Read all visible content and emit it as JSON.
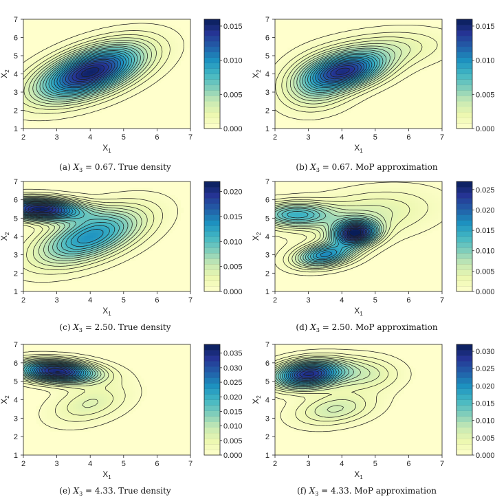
{
  "chart_data": [
    {
      "type": "heatmap",
      "panel": "a",
      "caption": "(a) X3 = 0.67. True density",
      "caption_parts": {
        "label": "(a)",
        "var": "X",
        "sub": "3",
        "rest": " = 0.67. True density"
      },
      "xlabel": "X1",
      "ylabel": "X2",
      "xlim": [
        2,
        7
      ],
      "ylim": [
        1,
        7
      ],
      "x_ticks": [
        "2",
        "3",
        "4",
        "5",
        "6",
        "7"
      ],
      "y_ticks": [
        "1",
        "2",
        "3",
        "4",
        "5",
        "6",
        "7"
      ],
      "colorbar": {
        "min": 0.0,
        "max": 0.016,
        "ticks": [
          "0.000",
          "0.005",
          "0.010",
          "0.015"
        ],
        "tick_values": [
          0.0,
          0.005,
          0.01,
          0.015
        ]
      },
      "modes": [
        {
          "center": [
            4.0,
            4.1
          ],
          "sd": [
            1.05,
            1.0
          ],
          "rho": 0.55,
          "peak": 0.0155
        }
      ]
    },
    {
      "type": "heatmap",
      "panel": "b",
      "caption": "(b) X3 = 0.67. MoP approximation",
      "caption_parts": {
        "label": "(b)",
        "var": "X",
        "sub": "3",
        "rest": " = 0.67. MoP approximation"
      },
      "xlabel": "X1",
      "ylabel": "X2",
      "xlim": [
        2,
        7
      ],
      "ylim": [
        1,
        7
      ],
      "x_ticks": [
        "2",
        "3",
        "4",
        "5",
        "6",
        "7"
      ],
      "y_ticks": [
        "1",
        "2",
        "3",
        "4",
        "5",
        "6",
        "7"
      ],
      "colorbar": {
        "min": 0.0,
        "max": 0.016,
        "ticks": [
          "0.000",
          "0.005",
          "0.010",
          "0.015"
        ],
        "tick_values": [
          0.0,
          0.005,
          0.01,
          0.015
        ]
      },
      "modes": [
        {
          "center": [
            4.2,
            4.2
          ],
          "sd": [
            0.75,
            0.65
          ],
          "rho": 0.3,
          "peak": 0.0115
        },
        {
          "center": [
            3.3,
            3.5
          ],
          "sd": [
            0.7,
            0.9
          ],
          "rho": 0.2,
          "peak": 0.0055
        },
        {
          "center": [
            5.2,
            5.3
          ],
          "sd": [
            1.2,
            0.7
          ],
          "rho": 0.3,
          "peak": 0.003
        }
      ]
    },
    {
      "type": "heatmap",
      "panel": "c",
      "caption": "(c) X3 = 2.50. True density",
      "caption_parts": {
        "label": "(c)",
        "var": "X",
        "sub": "3",
        "rest": " = 2.50. True density"
      },
      "xlabel": "X1",
      "ylabel": "X2",
      "xlim": [
        2,
        7
      ],
      "ylim": [
        1,
        7
      ],
      "x_ticks": [
        "2",
        "3",
        "4",
        "5",
        "6",
        "7"
      ],
      "y_ticks": [
        "1",
        "2",
        "3",
        "4",
        "5",
        "6",
        "7"
      ],
      "colorbar": {
        "min": 0.0,
        "max": 0.022,
        "ticks": [
          "0.000",
          "0.005",
          "0.010",
          "0.015",
          "0.020"
        ],
        "tick_values": [
          0.0,
          0.005,
          0.01,
          0.015,
          0.02
        ]
      },
      "modes": [
        {
          "center": [
            4.0,
            4.0
          ],
          "sd": [
            1.05,
            1.0
          ],
          "rho": 0.55,
          "peak": 0.0135
        },
        {
          "center": [
            2.5,
            5.5
          ],
          "sd": [
            0.85,
            0.4
          ],
          "rho": -0.15,
          "peak": 0.0215
        }
      ]
    },
    {
      "type": "heatmap",
      "panel": "d",
      "caption": "(d) X3 = 2.50. MoP approximation",
      "caption_parts": {
        "label": "(d)",
        "var": "X",
        "sub": "3",
        "rest": " = 2.50. MoP approximation"
      },
      "xlabel": "X1",
      "ylabel": "X2",
      "xlim": [
        2,
        7
      ],
      "ylim": [
        1,
        7
      ],
      "x_ticks": [
        "2",
        "3",
        "4",
        "5",
        "6",
        "7"
      ],
      "y_ticks": [
        "1",
        "2",
        "3",
        "4",
        "5",
        "6",
        "7"
      ],
      "colorbar": {
        "min": 0.0,
        "max": 0.027,
        "ticks": [
          "0.000",
          "0.005",
          "0.010",
          "0.015",
          "0.020",
          "0.025"
        ],
        "tick_values": [
          0.0,
          0.005,
          0.01,
          0.015,
          0.02,
          0.025
        ]
      },
      "modes": [
        {
          "center": [
            4.4,
            4.2
          ],
          "sd": [
            0.45,
            0.45
          ],
          "rho": 0.1,
          "peak": 0.0255
        },
        {
          "center": [
            3.5,
            3.0
          ],
          "sd": [
            0.6,
            0.45
          ],
          "rho": 0.3,
          "peak": 0.017
        },
        {
          "center": [
            2.6,
            5.2
          ],
          "sd": [
            0.75,
            0.45
          ],
          "rho": 0.0,
          "peak": 0.013
        },
        {
          "center": [
            4.8,
            5.2
          ],
          "sd": [
            1.3,
            0.9
          ],
          "rho": 0.3,
          "peak": 0.005
        }
      ]
    },
    {
      "type": "heatmap",
      "panel": "e",
      "caption": "(e) X3 = 4.33. True density",
      "caption_parts": {
        "label": "(e)",
        "var": "X",
        "sub": "3",
        "rest": " = 4.33. True density"
      },
      "xlabel": "X1",
      "ylabel": "X2",
      "xlim": [
        2,
        7
      ],
      "ylim": [
        1,
        7
      ],
      "x_ticks": [
        "2",
        "3",
        "4",
        "5",
        "6",
        "7"
      ],
      "y_ticks": [
        "1",
        "2",
        "3",
        "4",
        "5",
        "6",
        "7"
      ],
      "colorbar": {
        "min": 0.0,
        "max": 0.038,
        "ticks": [
          "0.000",
          "0.005",
          "0.010",
          "0.015",
          "0.020",
          "0.025",
          "0.030",
          "0.035"
        ],
        "tick_values": [
          0.0,
          0.005,
          0.01,
          0.015,
          0.02,
          0.025,
          0.03,
          0.035
        ]
      },
      "modes": [
        {
          "center": [
            3.0,
            5.55
          ],
          "sd": [
            0.8,
            0.4
          ],
          "rho": -0.2,
          "peak": 0.036
        },
        {
          "center": [
            4.0,
            3.8
          ],
          "sd": [
            0.8,
            0.75
          ],
          "rho": 0.4,
          "peak": 0.0065
        }
      ]
    },
    {
      "type": "heatmap",
      "panel": "f",
      "caption": "(f) X3 = 4.33. MoP approximation",
      "caption_parts": {
        "label": "(f)",
        "var": "X",
        "sub": "3",
        "rest": " = 4.33. MoP approximation"
      },
      "xlabel": "X1",
      "ylabel": "X2",
      "xlim": [
        2,
        7
      ],
      "ylim": [
        1,
        7
      ],
      "x_ticks": [
        "2",
        "3",
        "4",
        "5",
        "6",
        "7"
      ],
      "y_ticks": [
        "1",
        "2",
        "3",
        "4",
        "5",
        "6",
        "7"
      ],
      "colorbar": {
        "min": 0.0,
        "max": 0.032,
        "ticks": [
          "0.000",
          "0.005",
          "0.010",
          "0.015",
          "0.020",
          "0.025",
          "0.030"
        ],
        "tick_values": [
          0.0,
          0.005,
          0.01,
          0.015,
          0.02,
          0.025,
          0.03
        ]
      },
      "modes": [
        {
          "center": [
            3.0,
            5.4
          ],
          "sd": [
            0.7,
            0.5
          ],
          "rho": 0.2,
          "peak": 0.029
        },
        {
          "center": [
            3.8,
            3.5
          ],
          "sd": [
            0.8,
            0.6
          ],
          "rho": 0.3,
          "peak": 0.007
        },
        {
          "center": [
            4.7,
            5.4
          ],
          "sd": [
            0.7,
            0.6
          ],
          "rho": 0.0,
          "peak": 0.006
        }
      ]
    }
  ],
  "colormap": {
    "name": "YlGnBu",
    "stops": [
      "#ffffcc",
      "#edf8b1",
      "#c7e9b4",
      "#7fcdbb",
      "#41b6c4",
      "#1d91c0",
      "#225ea8",
      "#253494",
      "#081d58"
    ]
  }
}
